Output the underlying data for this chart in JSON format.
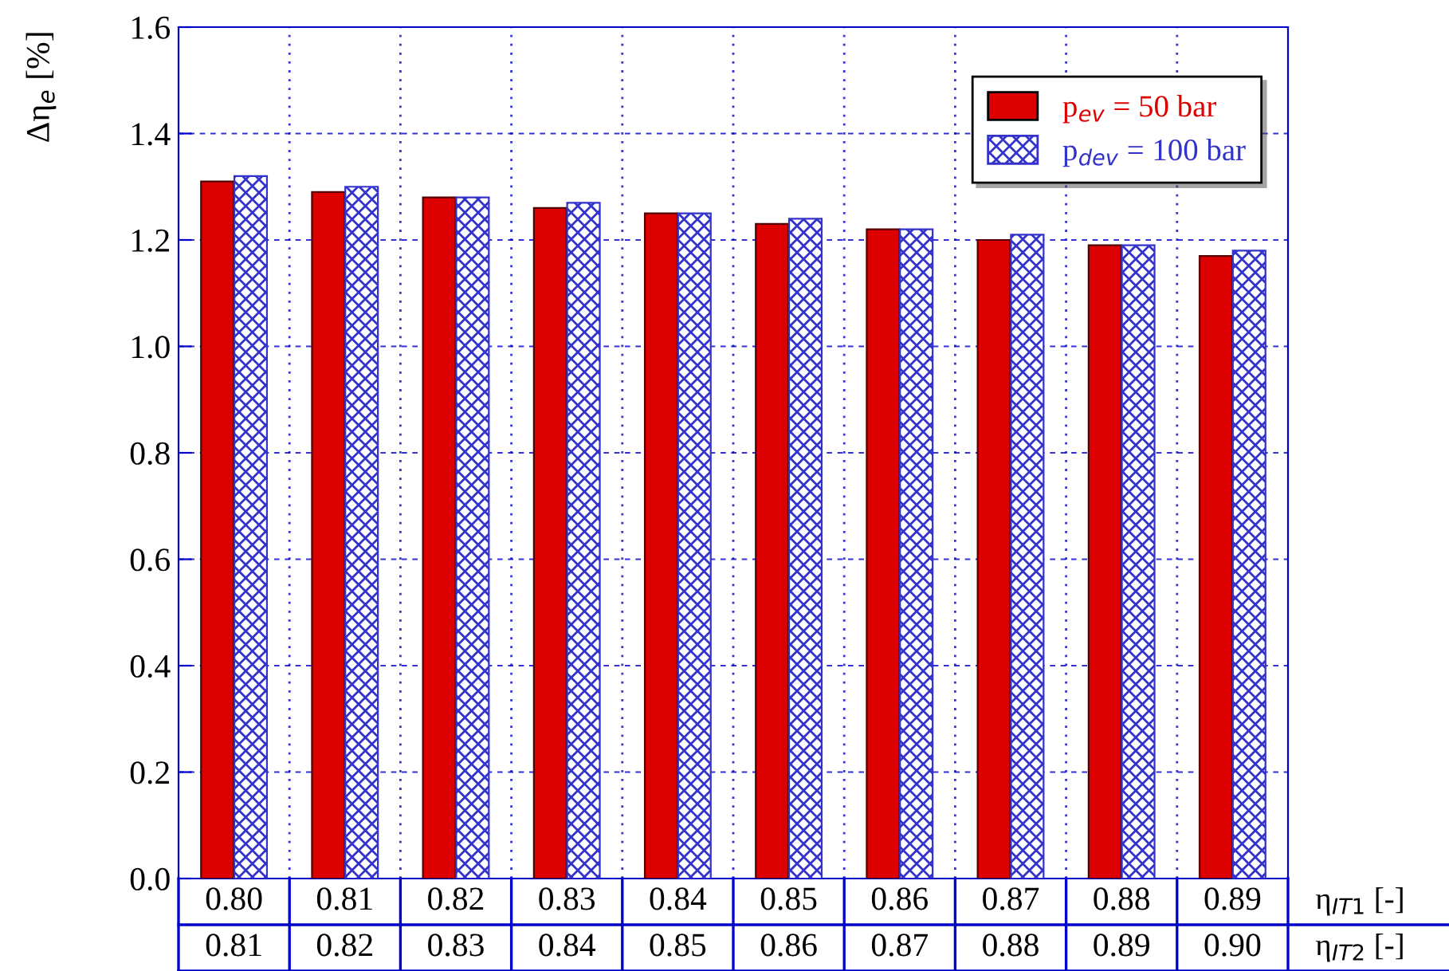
{
  "chart_data": {
    "type": "bar",
    "ylabel": "Δη$_{e}$ [%]",
    "xlabel": "η$_{IT1}$ [-]\nη$_{IT2}$ [-]",
    "categories": [
      "0.80\n0.81",
      "0.81\n0.82",
      "0.82\n0.83",
      "0.83\n0.84",
      "0.84\n0.85",
      "0.85\n0.86",
      "0.86\n0.87",
      "0.87\n0.88",
      "0.88\n0.89",
      "0.89\n0.90"
    ],
    "series": [
      {
        "name": "p$_{ev}$ = 50 bar",
        "color": "#dd0000",
        "values": [
          1.31,
          1.29,
          1.28,
          1.26,
          1.25,
          1.23,
          1.22,
          1.2,
          1.19,
          1.17
        ]
      },
      {
        "name": "p$_{dev}$ = 100 bar",
        "color": "#3333cc",
        "values": [
          1.32,
          1.3,
          1.28,
          1.27,
          1.25,
          1.24,
          1.22,
          1.21,
          1.19,
          1.18
        ]
      }
    ],
    "ylim": [
      0,
      1.6
    ],
    "yticks": [
      {
        "value": 0,
        "label": "0.0"
      },
      0.2,
      0.4,
      0.6,
      0.8,
      {
        "value": 1,
        "label": "1.0"
      },
      1.2,
      1.4,
      1.6
    ],
    "grid": true,
    "legend": "top right"
  }
}
